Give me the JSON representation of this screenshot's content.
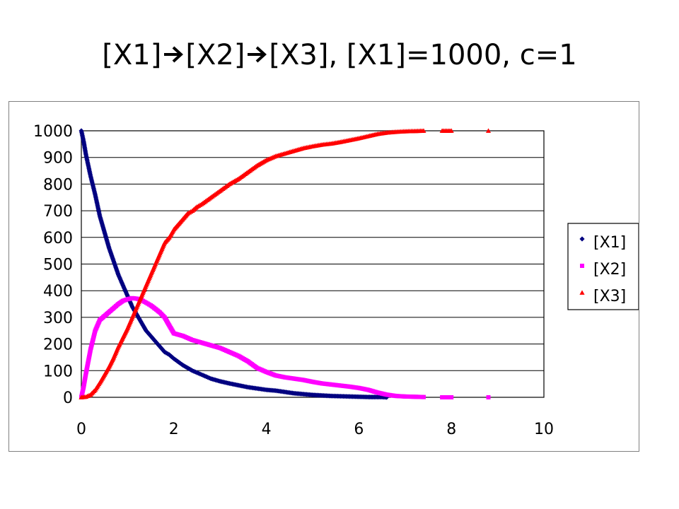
{
  "slide": {
    "title_parts": [
      "[X1]",
      "[X2]",
      "[X3], [X1]=1000, c=1"
    ]
  },
  "colors": {
    "X1": "#000080",
    "X2": "#ff00ff",
    "X3": "#ff0000",
    "grid": "#000000",
    "frame": "#808080"
  },
  "chart_data": {
    "type": "scatter",
    "title": "",
    "xlabel": "",
    "ylabel": "",
    "xlim": [
      0,
      10
    ],
    "ylim": [
      0,
      1000
    ],
    "x_ticks": [
      "0",
      "2",
      "4",
      "6",
      "8",
      "10"
    ],
    "y_ticks": [
      "0",
      "100",
      "200",
      "300",
      "400",
      "500",
      "600",
      "700",
      "800",
      "900",
      "1000"
    ],
    "grid": "horizontal",
    "legend_position": "right",
    "series": [
      {
        "name": "[X1]",
        "marker": "diamond",
        "color": "#000080",
        "points": [
          [
            0,
            1000
          ],
          [
            0.05,
            960
          ],
          [
            0.1,
            910
          ],
          [
            0.2,
            830
          ],
          [
            0.3,
            760
          ],
          [
            0.4,
            680
          ],
          [
            0.5,
            620
          ],
          [
            0.6,
            560
          ],
          [
            0.7,
            510
          ],
          [
            0.8,
            460
          ],
          [
            0.9,
            420
          ],
          [
            1.0,
            380
          ],
          [
            1.1,
            340
          ],
          [
            1.2,
            310
          ],
          [
            1.3,
            280
          ],
          [
            1.4,
            250
          ],
          [
            1.5,
            230
          ],
          [
            1.6,
            210
          ],
          [
            1.7,
            190
          ],
          [
            1.8,
            170
          ],
          [
            1.9,
            160
          ],
          [
            2.0,
            145
          ],
          [
            2.2,
            120
          ],
          [
            2.4,
            100
          ],
          [
            2.6,
            85
          ],
          [
            2.8,
            70
          ],
          [
            3.0,
            60
          ],
          [
            3.2,
            52
          ],
          [
            3.4,
            45
          ],
          [
            3.6,
            38
          ],
          [
            3.8,
            33
          ],
          [
            4.0,
            28
          ],
          [
            4.2,
            25
          ],
          [
            4.4,
            20
          ],
          [
            4.6,
            15
          ],
          [
            4.8,
            12
          ],
          [
            5.0,
            9
          ],
          [
            5.2,
            7
          ],
          [
            5.4,
            5
          ],
          [
            5.6,
            4
          ],
          [
            5.8,
            3
          ],
          [
            6.0,
            2
          ],
          [
            6.2,
            1
          ],
          [
            6.5,
            1
          ],
          [
            6.6,
            0
          ]
        ]
      },
      {
        "name": "[X2]",
        "marker": "square",
        "color": "#ff00ff",
        "points": [
          [
            0,
            0
          ],
          [
            0.05,
            40
          ],
          [
            0.1,
            90
          ],
          [
            0.2,
            180
          ],
          [
            0.3,
            250
          ],
          [
            0.4,
            290
          ],
          [
            0.5,
            305
          ],
          [
            0.6,
            320
          ],
          [
            0.7,
            335
          ],
          [
            0.8,
            350
          ],
          [
            0.9,
            362
          ],
          [
            1.0,
            368
          ],
          [
            1.1,
            372
          ],
          [
            1.2,
            370
          ],
          [
            1.3,
            365
          ],
          [
            1.4,
            355
          ],
          [
            1.5,
            345
          ],
          [
            1.6,
            332
          ],
          [
            1.7,
            318
          ],
          [
            1.8,
            300
          ],
          [
            1.9,
            270
          ],
          [
            2.0,
            240
          ],
          [
            2.2,
            230
          ],
          [
            2.4,
            215
          ],
          [
            2.6,
            205
          ],
          [
            2.8,
            195
          ],
          [
            3.0,
            185
          ],
          [
            3.2,
            170
          ],
          [
            3.4,
            155
          ],
          [
            3.6,
            135
          ],
          [
            3.8,
            110
          ],
          [
            4.0,
            95
          ],
          [
            4.2,
            82
          ],
          [
            4.4,
            75
          ],
          [
            4.6,
            70
          ],
          [
            4.8,
            65
          ],
          [
            5.0,
            58
          ],
          [
            5.2,
            52
          ],
          [
            5.4,
            48
          ],
          [
            5.6,
            44
          ],
          [
            5.8,
            40
          ],
          [
            6.0,
            35
          ],
          [
            6.2,
            28
          ],
          [
            6.4,
            18
          ],
          [
            6.6,
            10
          ],
          [
            6.8,
            5
          ],
          [
            7.0,
            3
          ],
          [
            7.2,
            2
          ],
          [
            7.4,
            1
          ],
          [
            7.8,
            0
          ],
          [
            8.0,
            0
          ],
          [
            8.8,
            0
          ]
        ]
      },
      {
        "name": "[X3]",
        "marker": "triangle",
        "color": "#ff0000",
        "points": [
          [
            0,
            0
          ],
          [
            0.1,
            2
          ],
          [
            0.2,
            10
          ],
          [
            0.3,
            28
          ],
          [
            0.4,
            55
          ],
          [
            0.5,
            85
          ],
          [
            0.6,
            115
          ],
          [
            0.7,
            150
          ],
          [
            0.8,
            190
          ],
          [
            0.9,
            225
          ],
          [
            1.0,
            260
          ],
          [
            1.1,
            300
          ],
          [
            1.2,
            340
          ],
          [
            1.3,
            380
          ],
          [
            1.4,
            420
          ],
          [
            1.5,
            460
          ],
          [
            1.6,
            500
          ],
          [
            1.7,
            540
          ],
          [
            1.8,
            580
          ],
          [
            1.9,
            600
          ],
          [
            2.0,
            630
          ],
          [
            2.1,
            650
          ],
          [
            2.2,
            670
          ],
          [
            2.3,
            690
          ],
          [
            2.4,
            700
          ],
          [
            2.5,
            715
          ],
          [
            2.6,
            725
          ],
          [
            2.8,
            750
          ],
          [
            3.0,
            775
          ],
          [
            3.2,
            800
          ],
          [
            3.4,
            820
          ],
          [
            3.6,
            845
          ],
          [
            3.8,
            870
          ],
          [
            4.0,
            890
          ],
          [
            4.2,
            905
          ],
          [
            4.4,
            915
          ],
          [
            4.6,
            925
          ],
          [
            4.8,
            935
          ],
          [
            5.0,
            942
          ],
          [
            5.2,
            948
          ],
          [
            5.4,
            952
          ],
          [
            5.6,
            958
          ],
          [
            5.8,
            965
          ],
          [
            6.0,
            972
          ],
          [
            6.2,
            980
          ],
          [
            6.4,
            988
          ],
          [
            6.6,
            993
          ],
          [
            6.8,
            996
          ],
          [
            7.0,
            998
          ],
          [
            7.2,
            999
          ],
          [
            7.4,
            1000
          ],
          [
            7.8,
            1000
          ],
          [
            8.0,
            1000
          ],
          [
            8.8,
            1000
          ]
        ]
      }
    ]
  }
}
